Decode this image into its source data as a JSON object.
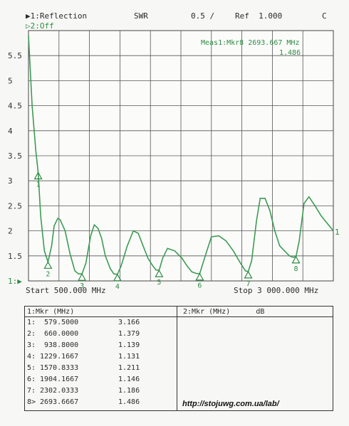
{
  "header": {
    "trace1": "▶1:Reflection",
    "format": "SWR",
    "scale": "0.5 /",
    "ref": "Ref  1.000",
    "corner": "C",
    "trace2": "▷2:Off"
  },
  "marker_readout": {
    "line1": "Meas1:Mkr8 2693.667 MHz",
    "line2": "1.486"
  },
  "axis": {
    "start": "Start 500.000 MHz",
    "stop": "Stop 3 000.000 MHz",
    "ref_marker": "1:▶",
    "end_marker": "1"
  },
  "chart_data": {
    "type": "line",
    "title": "",
    "xlabel": "",
    "ylabel": "",
    "xlim": [
      500,
      3000
    ],
    "ylim": [
      1,
      6
    ],
    "y_ticks": [
      "5.5",
      "5",
      "4.5",
      "4",
      "3.5",
      "3",
      "2.5",
      "2",
      "1.5",
      "1:▶"
    ],
    "grid": true,
    "series": [
      {
        "x": [
          500,
          530,
          560,
          579.5,
          600,
          630,
          660,
          690,
          710,
          740,
          760,
          800,
          840,
          880,
          910,
          938.8,
          970,
          1010,
          1040,
          1070,
          1100,
          1130,
          1170,
          1200,
          1229,
          1260,
          1310,
          1360,
          1400,
          1440,
          1480,
          1520,
          1545,
          1571,
          1600,
          1640,
          1700,
          1760,
          1800,
          1840,
          1880,
          1904,
          1950,
          2000,
          2060,
          2120,
          2180,
          2240,
          2280,
          2302,
          2330,
          2370,
          2400,
          2440,
          2480,
          2520,
          2560,
          2600,
          2640,
          2670,
          2694,
          2720,
          2760,
          2800,
          2850,
          2900,
          2950,
          3000
        ],
        "values": [
          5.9,
          4.5,
          3.6,
          3.166,
          2.3,
          1.6,
          1.379,
          1.7,
          2.1,
          2.25,
          2.22,
          2.0,
          1.55,
          1.2,
          1.14,
          1.139,
          1.35,
          1.9,
          2.12,
          2.05,
          1.85,
          1.5,
          1.25,
          1.14,
          1.131,
          1.3,
          1.7,
          2.0,
          1.95,
          1.7,
          1.45,
          1.3,
          1.22,
          1.211,
          1.45,
          1.65,
          1.6,
          1.45,
          1.3,
          1.18,
          1.146,
          1.146,
          1.5,
          1.88,
          1.9,
          1.8,
          1.6,
          1.35,
          1.2,
          1.186,
          1.4,
          2.2,
          2.65,
          2.65,
          2.4,
          2.0,
          1.7,
          1.6,
          1.5,
          1.47,
          1.486,
          1.8,
          2.55,
          2.68,
          2.5,
          2.3,
          2.15,
          2.0
        ]
      }
    ],
    "markers": [
      {
        "label": "1",
        "x": 579.5,
        "y": 3.166
      },
      {
        "label": "2",
        "x": 660.0,
        "y": 1.379
      },
      {
        "label": "3",
        "x": 938.8,
        "y": 1.139
      },
      {
        "label": "4",
        "x": 1229.1667,
        "y": 1.131
      },
      {
        "label": "5",
        "x": 1570.8333,
        "y": 1.211
      },
      {
        "label": "6",
        "x": 1904.1667,
        "y": 1.146
      },
      {
        "label": "7",
        "x": 2302.0333,
        "y": 1.186
      },
      {
        "label": "8",
        "x": 2693.6667,
        "y": 1.486
      }
    ],
    "trace_color": "#3d9b55"
  },
  "table": {
    "left_header": "1:Mkr (MHz)",
    "right_header": "2:Mkr (MHz)      dB",
    "rows": [
      {
        "id": "1:",
        "freq": " 579.5000",
        "val": "3.166"
      },
      {
        "id": "2:",
        "freq": " 660.0000",
        "val": "1.379"
      },
      {
        "id": "3:",
        "freq": " 938.8000",
        "val": "1.139"
      },
      {
        "id": "4:",
        "freq": "1229.1667",
        "val": "1.131"
      },
      {
        "id": "5:",
        "freq": "1570.8333",
        "val": "1.211"
      },
      {
        "id": "6:",
        "freq": "1904.1667",
        "val": "1.146"
      },
      {
        "id": "7:",
        "freq": "2302.0333",
        "val": "1.186"
      },
      {
        "id": "8>",
        "freq": "2693.6667",
        "val": "1.486"
      }
    ]
  },
  "watermark": "http://stojuwg.com.ua/lab/"
}
